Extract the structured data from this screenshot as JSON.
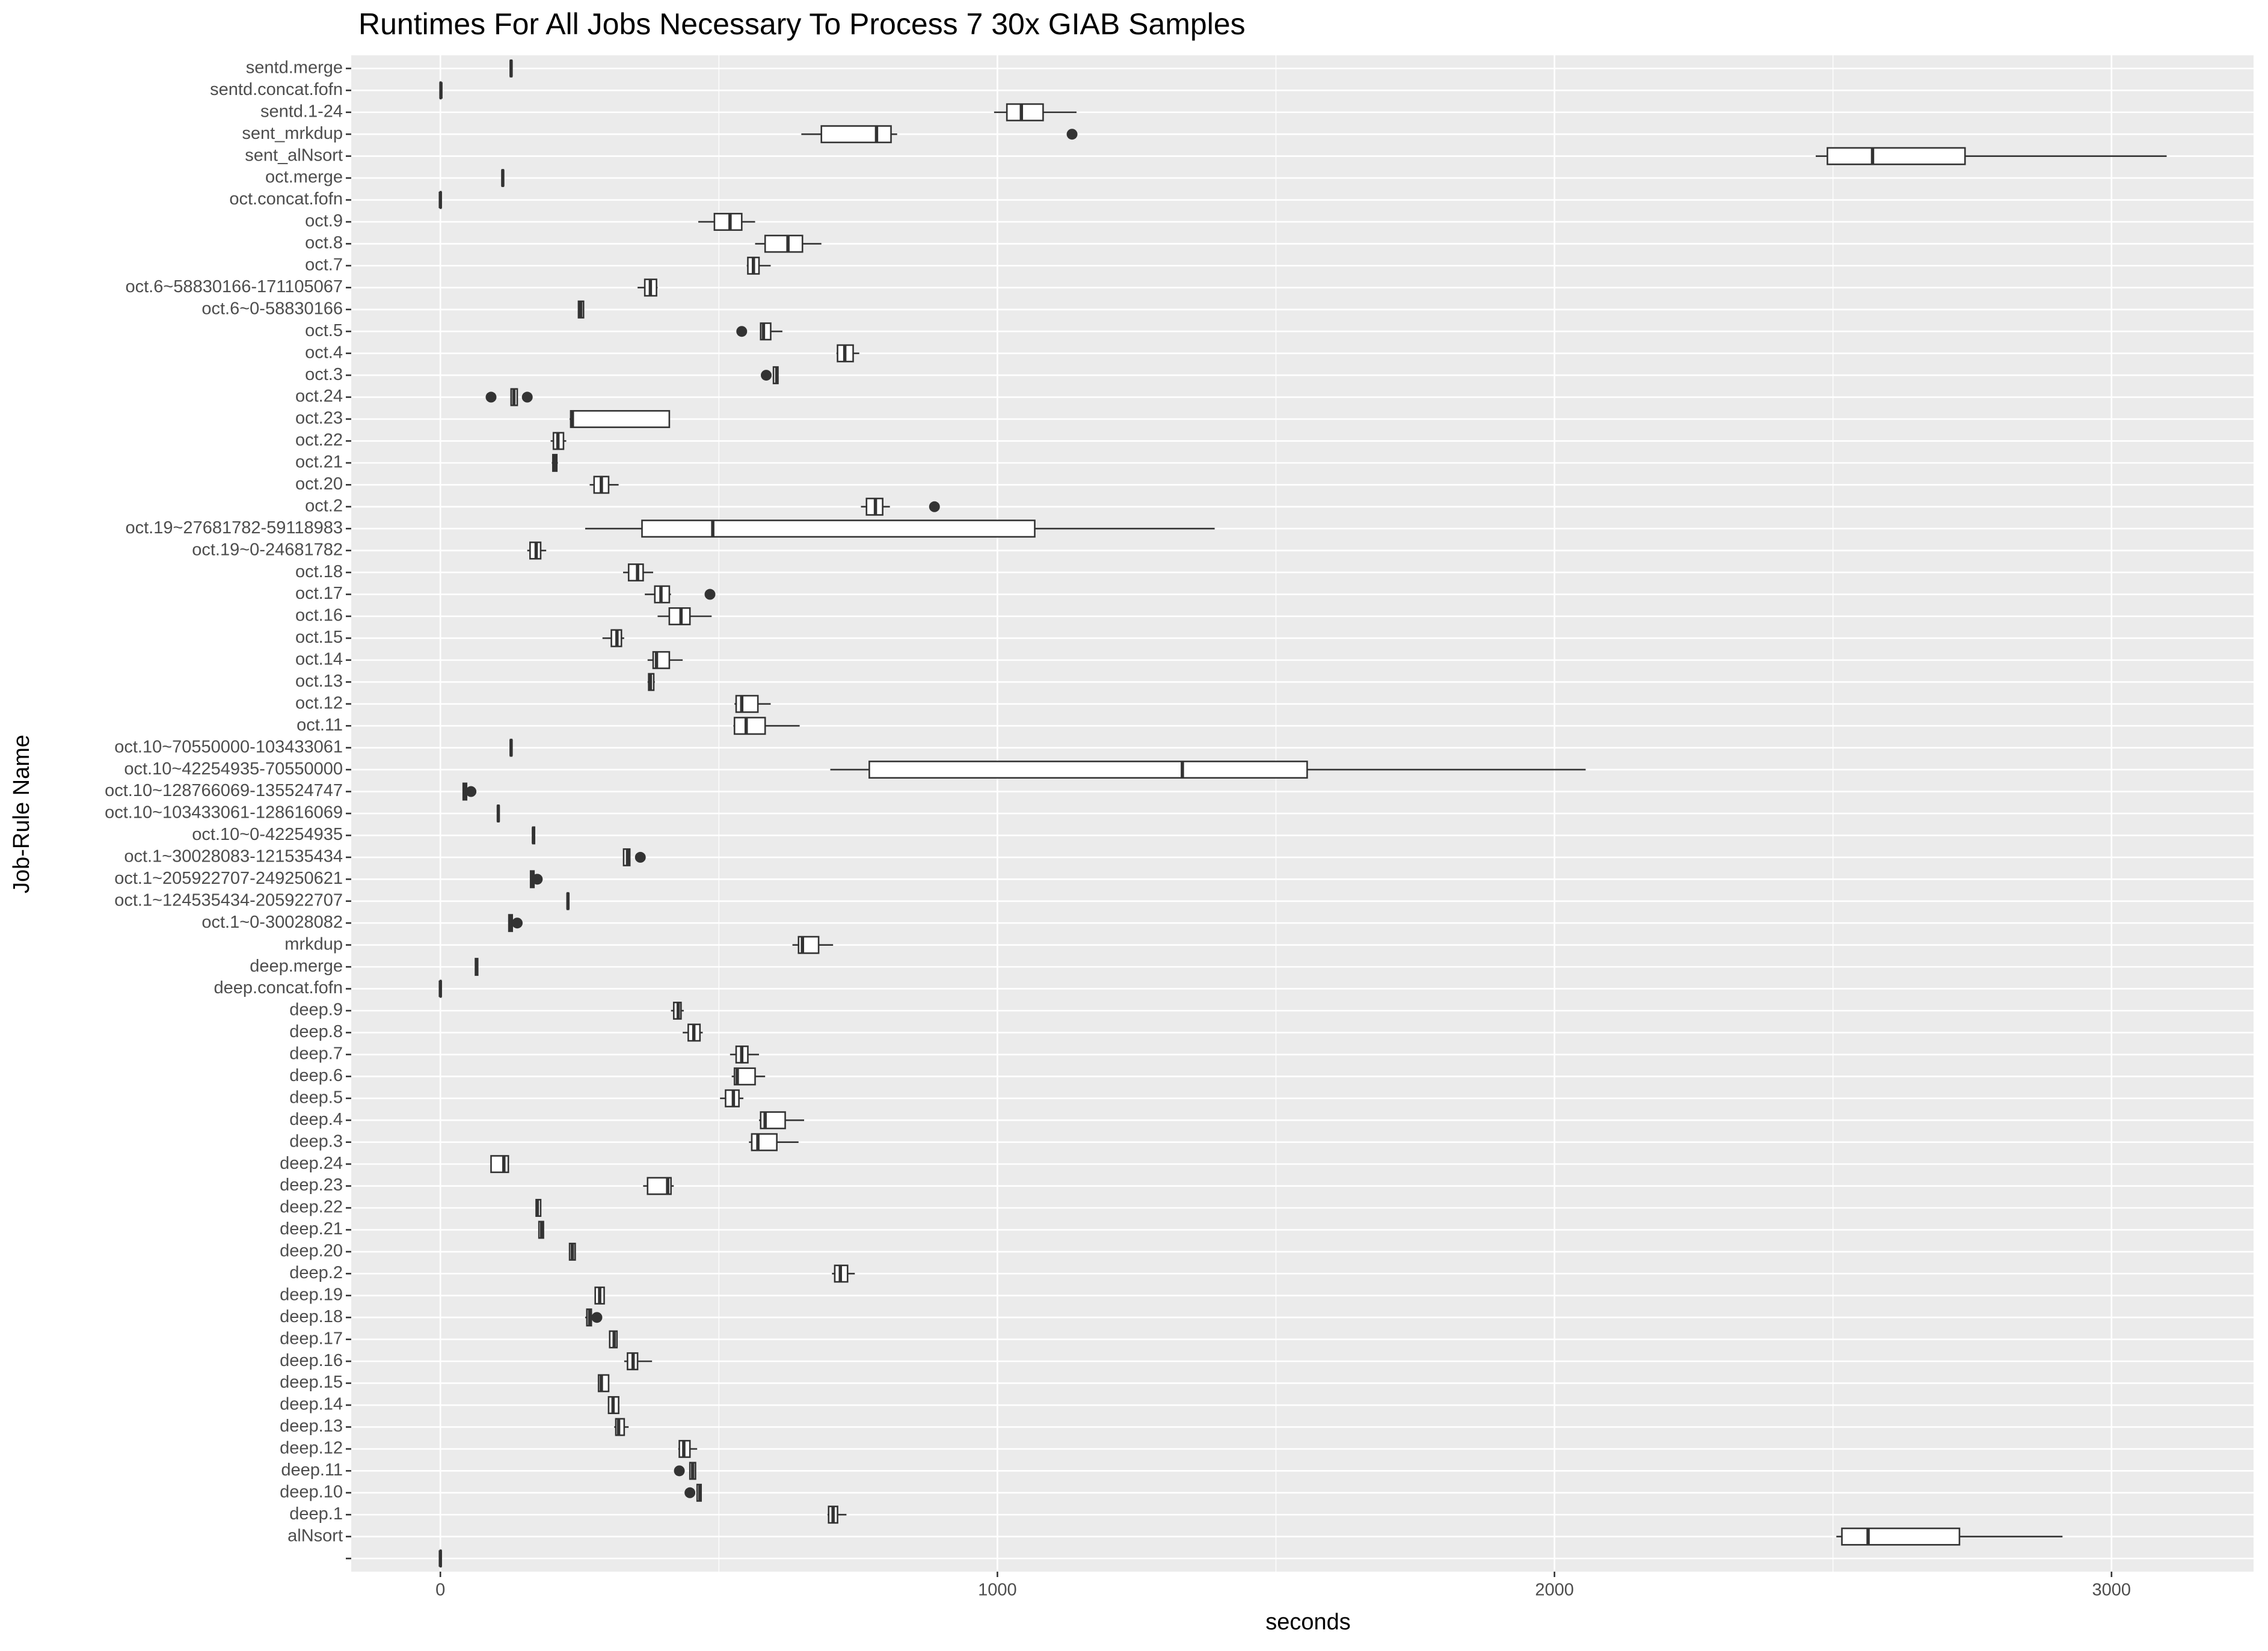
{
  "chart_data": {
    "type": "boxplot",
    "title": "Runtimes For All Jobs Necessary To Process 7 30x GIAB Samples",
    "x_label": "seconds",
    "y_label": "Job-Rule Name",
    "xlim": [
      -160,
      3255
    ],
    "xticks": [
      0,
      1000,
      2000,
      3000
    ],
    "x_minor_grid": [
      500,
      1500,
      2500
    ],
    "grid": true,
    "box_fill": "#ffffff",
    "box_color": "#333333",
    "categories": [
      "sentd.merge",
      "sentd.concat.fofn",
      "sentd.1-24",
      "sent_mrkdup",
      "sent_alNsort",
      "oct.merge",
      "oct.concat.fofn",
      "oct.9",
      "oct.8",
      "oct.7",
      "oct.6~58830166-171105067",
      "oct.6~0-58830166",
      "oct.5",
      "oct.4",
      "oct.3",
      "oct.24",
      "oct.23",
      "oct.22",
      "oct.21",
      "oct.20",
      "oct.2",
      "oct.19~27681782-59118983",
      "oct.19~0-24681782",
      "oct.18",
      "oct.17",
      "oct.16",
      "oct.15",
      "oct.14",
      "oct.13",
      "oct.12",
      "oct.11",
      "oct.10~70550000-103433061",
      "oct.10~42254935-70550000",
      "oct.10~128766069-135524747",
      "oct.10~103433061-128616069",
      "oct.10~0-42254935",
      "oct.1~30028083-121535434",
      "oct.1~205922707-249250621",
      "oct.1~124535434-205922707",
      "oct.1~0-30028082",
      "mrkdup",
      "deep.merge",
      "deep.concat.fofn",
      "deep.9",
      "deep.8",
      "deep.7",
      "deep.6",
      "deep.5",
      "deep.4",
      "deep.3",
      "deep.24",
      "deep.23",
      "deep.22",
      "deep.21",
      "deep.20",
      "deep.2",
      "deep.19",
      "deep.18",
      "deep.17",
      "deep.16",
      "deep.15",
      "deep.14",
      "deep.13",
      "deep.12",
      "deep.11",
      "deep.10",
      "deep.1",
      "alNsort",
      null
    ],
    "boxes": [
      {
        "min": 125,
        "q1": 126,
        "median": 127,
        "q3": 128,
        "max": 129
      },
      {
        "min": 0,
        "q1": 0,
        "median": 1,
        "q3": 1,
        "max": 2
      },
      {
        "min": 994,
        "q1": 1017,
        "median": 1043,
        "q3": 1082,
        "max": 1142
      },
      {
        "min": 648,
        "q1": 684,
        "median": 783,
        "q3": 809,
        "max": 820,
        "outliers": [
          1134
        ]
      },
      {
        "min": 2469,
        "q1": 2490,
        "median": 2571,
        "q3": 2737,
        "max": 3099
      },
      {
        "min": 110,
        "q1": 111,
        "median": 112,
        "q3": 113,
        "max": 114
      },
      {
        "min": 0,
        "q1": 0,
        "median": 0,
        "q3": 1,
        "max": 1
      },
      {
        "min": 463,
        "q1": 492,
        "median": 520,
        "q3": 541,
        "max": 565
      },
      {
        "min": 565,
        "q1": 583,
        "median": 624,
        "q3": 650,
        "max": 684
      },
      {
        "min": 550,
        "q1": 552,
        "median": 562,
        "q3": 572,
        "max": 593
      },
      {
        "min": 354,
        "q1": 367,
        "median": 377,
        "q3": 388,
        "max": 390
      },
      {
        "min": 247,
        "q1": 248,
        "median": 252,
        "q3": 257,
        "max": 258
      },
      {
        "min": 575,
        "q1": 575,
        "median": 580,
        "q3": 593,
        "max": 614,
        "outliers": [
          541
        ]
      },
      {
        "min": 711,
        "q1": 713,
        "median": 726,
        "q3": 741,
        "max": 752
      },
      {
        "min": 598,
        "q1": 598,
        "median": 604,
        "q3": 606,
        "max": 606,
        "outliers": [
          585
        ]
      },
      {
        "min": 127,
        "q1": 127,
        "median": 132,
        "q3": 138,
        "max": 138,
        "outliers": [
          91,
          156
        ]
      },
      {
        "min": 232,
        "q1": 234,
        "median": 237,
        "q3": 411,
        "max": 411
      },
      {
        "min": 198,
        "q1": 203,
        "median": 211,
        "q3": 221,
        "max": 226
      },
      {
        "min": 200,
        "q1": 202,
        "median": 206,
        "q3": 209,
        "max": 211
      },
      {
        "min": 268,
        "q1": 276,
        "median": 289,
        "q3": 302,
        "max": 320
      },
      {
        "min": 755,
        "q1": 765,
        "median": 781,
        "q3": 794,
        "max": 807,
        "outliers": [
          887
        ]
      },
      {
        "min": 260,
        "q1": 362,
        "median": 489,
        "q3": 1067,
        "max": 1390
      },
      {
        "min": 156,
        "q1": 161,
        "median": 172,
        "q3": 180,
        "max": 190
      },
      {
        "min": 328,
        "q1": 338,
        "median": 354,
        "q3": 364,
        "max": 382
      },
      {
        "min": 367,
        "q1": 385,
        "median": 396,
        "q3": 411,
        "max": 414,
        "outliers": [
          484
        ]
      },
      {
        "min": 390,
        "q1": 411,
        "median": 432,
        "q3": 448,
        "max": 487
      },
      {
        "min": 291,
        "q1": 307,
        "median": 317,
        "q3": 325,
        "max": 330
      },
      {
        "min": 372,
        "q1": 382,
        "median": 388,
        "q3": 411,
        "max": 435
      },
      {
        "min": 372,
        "q1": 374,
        "median": 377,
        "q3": 383,
        "max": 385
      },
      {
        "min": 528,
        "q1": 531,
        "median": 541,
        "q3": 570,
        "max": 593
      },
      {
        "min": 526,
        "q1": 528,
        "median": 549,
        "q3": 583,
        "max": 645
      },
      {
        "min": 126,
        "q1": 126,
        "median": 127,
        "q3": 128,
        "max": 129
      },
      {
        "min": 700,
        "q1": 770,
        "median": 1332,
        "q3": 1556,
        "max": 2056
      },
      {
        "min": 40,
        "q1": 41,
        "median": 44,
        "q3": 47,
        "max": 48,
        "outliers": [
          55
        ]
      },
      {
        "min": 102,
        "q1": 103,
        "median": 104,
        "q3": 105,
        "max": 106
      },
      {
        "min": 165,
        "q1": 166,
        "median": 167,
        "q3": 169,
        "max": 170
      },
      {
        "min": 328,
        "q1": 329,
        "median": 336,
        "q3": 340,
        "max": 341,
        "outliers": [
          359
        ]
      },
      {
        "min": 161,
        "q1": 162,
        "median": 164,
        "q3": 168,
        "max": 169,
        "outliers": [
          174
        ]
      },
      {
        "min": 228,
        "q1": 228,
        "median": 229,
        "q3": 230,
        "max": 231
      },
      {
        "min": 122,
        "q1": 123,
        "median": 127,
        "q3": 129,
        "max": 130,
        "outliers": [
          138
        ]
      },
      {
        "min": 632,
        "q1": 643,
        "median": 650,
        "q3": 679,
        "max": 705
      },
      {
        "min": 62,
        "q1": 63,
        "median": 65,
        "q3": 67,
        "max": 68
      },
      {
        "min": 0,
        "q1": 0,
        "median": 0,
        "q3": 1,
        "max": 1
      },
      {
        "min": 414,
        "q1": 419,
        "median": 427,
        "q3": 432,
        "max": 437
      },
      {
        "min": 435,
        "q1": 445,
        "median": 455,
        "q3": 466,
        "max": 471
      },
      {
        "min": 520,
        "q1": 531,
        "median": 541,
        "q3": 552,
        "max": 572
      },
      {
        "min": 523,
        "q1": 528,
        "median": 533,
        "q3": 565,
        "max": 583
      },
      {
        "min": 502,
        "q1": 512,
        "median": 526,
        "q3": 536,
        "max": 544
      },
      {
        "min": 572,
        "q1": 575,
        "median": 583,
        "q3": 619,
        "max": 653
      },
      {
        "min": 554,
        "q1": 559,
        "median": 570,
        "q3": 604,
        "max": 643
      },
      {
        "min": 91,
        "q1": 91,
        "median": 114,
        "q3": 122,
        "max": 122
      },
      {
        "min": 364,
        "q1": 372,
        "median": 408,
        "q3": 414,
        "max": 419
      },
      {
        "min": 172,
        "q1": 172,
        "median": 174,
        "q3": 180,
        "max": 180
      },
      {
        "min": 177,
        "q1": 177,
        "median": 182,
        "q3": 185,
        "max": 185
      },
      {
        "min": 232,
        "q1": 232,
        "median": 237,
        "q3": 242,
        "max": 242
      },
      {
        "min": 703,
        "q1": 708,
        "median": 718,
        "q3": 731,
        "max": 744
      },
      {
        "min": 278,
        "q1": 278,
        "median": 286,
        "q3": 294,
        "max": 294
      },
      {
        "min": 260,
        "q1": 263,
        "median": 268,
        "q3": 271,
        "max": 273,
        "outliers": [
          281
        ]
      },
      {
        "min": 304,
        "q1": 304,
        "median": 312,
        "q3": 317,
        "max": 317
      },
      {
        "min": 330,
        "q1": 336,
        "median": 346,
        "q3": 354,
        "max": 380
      },
      {
        "min": 284,
        "q1": 284,
        "median": 289,
        "q3": 302,
        "max": 302
      },
      {
        "min": 302,
        "q1": 302,
        "median": 310,
        "q3": 320,
        "max": 320
      },
      {
        "min": 312,
        "q1": 315,
        "median": 320,
        "q3": 330,
        "max": 338
      },
      {
        "min": 427,
        "q1": 429,
        "median": 437,
        "q3": 448,
        "max": 461
      },
      {
        "min": 448,
        "q1": 448,
        "median": 453,
        "q3": 458,
        "max": 458,
        "outliers": [
          429
        ]
      },
      {
        "min": 461,
        "q1": 461,
        "median": 466,
        "q3": 468,
        "max": 468,
        "outliers": [
          448
        ]
      },
      {
        "min": 695,
        "q1": 697,
        "median": 705,
        "q3": 713,
        "max": 729
      },
      {
        "min": 2506,
        "q1": 2516,
        "median": 2563,
        "q3": 2727,
        "max": 2912
      },
      {
        "min": 0,
        "q1": 0,
        "median": 0,
        "q3": 1,
        "max": 1
      }
    ]
  }
}
